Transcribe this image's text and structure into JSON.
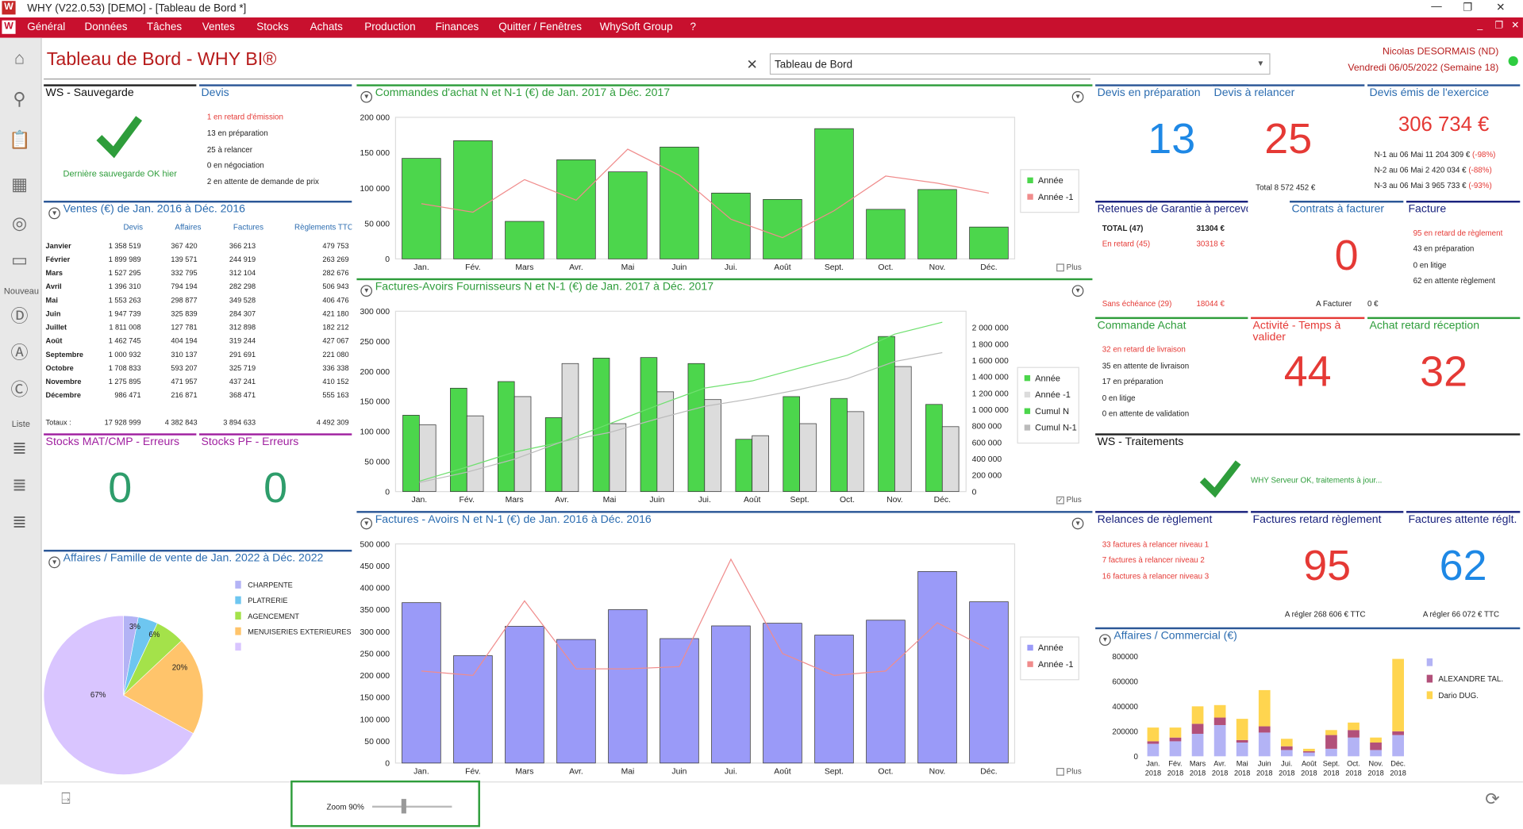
{
  "window": {
    "title": "WHY (V22.0.53)  [DEMO] - [Tableau de Bord *]"
  },
  "menu": [
    "Général",
    "Données",
    "Tâches",
    "Ventes",
    "Stocks",
    "Achats",
    "Production",
    "Finances",
    "Quitter / Fenêtres",
    "WhySoft Group",
    "?"
  ],
  "sidebar": {
    "nouveau": "Nouveau",
    "liste": "Liste"
  },
  "header": {
    "title": "Tableau de Bord - WHY BI®",
    "dashboard_select": "Tableau de Bord",
    "user": "Nicolas DESORMAIS (ND)",
    "date": "Vendredi 06/05/2022 (Semaine 18)"
  },
  "ws_save": {
    "title": "WS - Sauvegarde",
    "status": "Dernière sauvegarde OK hier"
  },
  "devis": {
    "title": "Devis",
    "lines": [
      "1 en retard d'émission",
      "13 en préparation",
      "25 à relancer",
      "0 en négociation",
      "2 en attente de demande de prix"
    ]
  },
  "ventes": {
    "title": "Ventes (€) de Jan. 2016 à Déc. 2016",
    "headers": [
      "Devis",
      "Affaires",
      "Factures",
      "Règlements TTC"
    ],
    "rows": [
      [
        "Janvier",
        "1 358 519",
        "367 420",
        "366 213",
        "479 753"
      ],
      [
        "Février",
        "1 899 989",
        "139 571",
        "244 919",
        "263 269"
      ],
      [
        "Mars",
        "1 527 295",
        "332 795",
        "312 104",
        "282 676"
      ],
      [
        "Avril",
        "1 396 310",
        "794 194",
        "282 298",
        "506 943"
      ],
      [
        "Mai",
        "1 553 263",
        "298 877",
        "349 528",
        "406 476"
      ],
      [
        "Juin",
        "1 947 739",
        "325 839",
        "284 307",
        "421 180"
      ],
      [
        "Juillet",
        "1 811 008",
        "127 781",
        "312 898",
        "182 212"
      ],
      [
        "Août",
        "1 462 745",
        "404 194",
        "319 244",
        "427 067"
      ],
      [
        "Septembre",
        "1 000 932",
        "310 137",
        "291 691",
        "221 080"
      ],
      [
        "Octobre",
        "1 708 833",
        "593 207",
        "325 719",
        "336 338"
      ],
      [
        "Novembre",
        "1 275 895",
        "471 957",
        "437 241",
        "410 152"
      ],
      [
        "Décembre",
        "986 471",
        "216 871",
        "368 471",
        "555 163"
      ]
    ],
    "totals": [
      "Totaux :",
      "17 928 999",
      "4 382 843",
      "3 894 633",
      "4 492 309"
    ]
  },
  "stocks_mat": {
    "title": "Stocks MAT/CMP - Erreurs",
    "value": "0"
  },
  "stocks_pf": {
    "title": "Stocks PF - Erreurs",
    "value": "0"
  },
  "affaires_famille": {
    "title": "Affaires / Famille de vente de Jan. 2022 à Déc. 2022",
    "legend": [
      "CHARPENTE",
      "PLATRERIE",
      "AGENCEMENT",
      "MENUISERIES EXTERIEURES",
      ""
    ],
    "labels": [
      "3%",
      "6%",
      "20%",
      "67%"
    ]
  },
  "commandes": {
    "title": "Commandes d'achat N et N-1 (€) de Jan. 2017 à Déc. 2017",
    "plus": "Plus"
  },
  "factures_fourn": {
    "title": "Factures-Avoirs Fournisseurs N et N-1 (€) de Jan. 2017 à Déc. 2017",
    "plus": "Plus"
  },
  "factures": {
    "title": "Factures - Avoirs N et N-1 (€) de Jan. 2016 à Déc. 2016",
    "plus": "Plus"
  },
  "kpi": {
    "devis_prep": {
      "title": "Devis en préparation",
      "value": "13"
    },
    "devis_relancer": {
      "title": "Devis à relancer",
      "value": "25",
      "sub": "Total 8 572 452 €"
    },
    "devis_emis": {
      "title": "Devis émis de l'exercice",
      "value": "306 734 €",
      "l1a": "N-1 au 06 Mai 11 204 309 € ",
      "l1b": "(-98%)",
      "l2a": "N-2 au 06 Mai 2 420 034 € ",
      "l2b": "(-88%)",
      "l3a": "N-3 au 06 Mai 3 965 733 € ",
      "l3b": "(-93%)"
    },
    "retenues": {
      "title": "Retenues de Garantie à percevoir",
      "total_l": "TOTAL (47)",
      "total_v": "31304 €",
      "retard_l": "En retard (45)",
      "retard_v": "30318 €",
      "sans_l": "Sans échéance (29)",
      "sans_v": "18044 €"
    },
    "contrats": {
      "title": "Contrats à facturer",
      "value": "0",
      "sub_l": "A Facturer",
      "sub_v": "0 €"
    },
    "facture": {
      "title": "Facture",
      "lines": [
        "95 en retard de règlement",
        "43 en préparation",
        "0 en litige",
        "62 en attente règlement"
      ]
    },
    "commande_achat": {
      "title": "Commande Achat",
      "lines": [
        "32 en retard de livraison",
        "35 en attente de livraison",
        "17 en préparation",
        "0 en litige",
        "0 en attente de validation"
      ]
    },
    "activite": {
      "title": "Activité - Temps à valider",
      "value": "44"
    },
    "achat_retard": {
      "title": "Achat retard réception",
      "value": "32"
    },
    "ws_trait": {
      "title": "WS - Traitements",
      "status": "WHY Serveur OK, traitements à jour..."
    },
    "relances": {
      "title": "Relances de règlement",
      "lines": [
        "33 factures à relancer niveau 1",
        "7 factures à relancer niveau 2",
        "16 factures à relancer niveau 3"
      ]
    },
    "fact_retard": {
      "title": "Factures retard règlement",
      "value": "95",
      "sub": "A régler   268 606 € TTC"
    },
    "fact_attente": {
      "title": "Factures attente réglt.",
      "value": "62",
      "sub": "A régler   66 072 € TTC"
    }
  },
  "affaires_commercial": {
    "title": "Affaires / Commercial (€)",
    "legend": [
      "",
      "ALEXANDRE TAL.",
      "Dario DUG."
    ]
  },
  "footer": {
    "zoom": "Zoom 90%"
  },
  "colors": {
    "brand": "#c8102e",
    "green": "#4cd64c",
    "blue_kpi": "#1e88e5",
    "red_kpi": "#e53935",
    "purple": "#9a9af8"
  },
  "chart_data": [
    {
      "type": "bar",
      "id": "commandes",
      "categories": [
        "Jan.",
        "Fév.",
        "Mars",
        "Avr.",
        "Mai",
        "Juin",
        "Jui.",
        "Août",
        "Sept.",
        "Oct.",
        "Nov.",
        "Déc."
      ],
      "series": [
        {
          "name": "Année",
          "kind": "bar",
          "values": [
            142000,
            167000,
            53000,
            140000,
            123000,
            158000,
            93000,
            84000,
            184000,
            70000,
            98000,
            45000
          ]
        },
        {
          "name": "Année -1",
          "kind": "line",
          "values": [
            78000,
            66000,
            112000,
            83000,
            155000,
            118000,
            56000,
            30000,
            68000,
            117000,
            107000,
            93000
          ]
        }
      ],
      "ylim": [
        0,
        200000
      ],
      "yticks": [
        0,
        50000,
        100000,
        150000,
        200000
      ],
      "yticklabels": [
        "0",
        "50 000",
        "100 000",
        "150 000",
        "200 000"
      ]
    },
    {
      "type": "bar",
      "id": "factures_fourn",
      "categories": [
        "Jan.",
        "Fév.",
        "Mars",
        "Avr.",
        "Mai",
        "Juin",
        "Jui.",
        "Août",
        "Sept.",
        "Oct.",
        "Nov.",
        "Déc."
      ],
      "series": [
        {
          "name": "Année",
          "kind": "bar",
          "values": [
            127000,
            172000,
            183000,
            123000,
            222000,
            223000,
            213000,
            87000,
            158000,
            155000,
            258000,
            145000
          ]
        },
        {
          "name": "Année -1",
          "kind": "bar",
          "values": [
            111000,
            126000,
            158000,
            213000,
            113000,
            166000,
            153000,
            93000,
            113000,
            133000,
            208000,
            108000
          ]
        },
        {
          "name": "Cumul N",
          "kind": "line",
          "values": [
            127000,
            299000,
            482000,
            605000,
            827000,
            1050000,
            1263000,
            1350000,
            1508000,
            1663000,
            1921000,
            2066000
          ]
        },
        {
          "name": "Cumul N-1",
          "kind": "line",
          "values": [
            111000,
            237000,
            395000,
            608000,
            721000,
            887000,
            1040000,
            1133000,
            1246000,
            1379000,
            1587000,
            1695000
          ]
        }
      ],
      "ylim": [
        0,
        300000
      ],
      "yticks": [
        0,
        50000,
        100000,
        150000,
        200000,
        250000,
        300000
      ],
      "yticklabels": [
        "0",
        "50 000",
        "100 000",
        "150 000",
        "200 000",
        "250 000",
        "300 000"
      ],
      "y2lim": [
        0,
        2200000
      ],
      "y2ticks": [
        0,
        200000,
        400000,
        600000,
        800000,
        1000000,
        1200000,
        1400000,
        1600000,
        1800000,
        2000000
      ],
      "y2ticklabels": [
        "0",
        "200 000",
        "400 000",
        "600 000",
        "800 000",
        "1 000 000",
        "1 200 000",
        "1 400 000",
        "1 600 000",
        "1 800 000",
        "2 000 000"
      ]
    },
    {
      "type": "bar",
      "id": "factures",
      "categories": [
        "Jan.",
        "Fév.",
        "Mars",
        "Avr.",
        "Mai",
        "Juin",
        "Jui.",
        "Août",
        "Sept.",
        "Oct.",
        "Nov.",
        "Déc."
      ],
      "series": [
        {
          "name": "Année",
          "kind": "bar",
          "values": [
            366000,
            245000,
            312000,
            282000,
            350000,
            284000,
            313000,
            319000,
            292000,
            326000,
            437000,
            368000
          ]
        },
        {
          "name": "Année -1",
          "kind": "line",
          "values": [
            210000,
            200000,
            370000,
            215000,
            215000,
            220000,
            465000,
            250000,
            200000,
            210000,
            320000,
            260000
          ]
        }
      ],
      "ylim": [
        0,
        500000
      ],
      "yticks": [
        0,
        50000,
        100000,
        150000,
        200000,
        250000,
        300000,
        350000,
        400000,
        450000,
        500000
      ],
      "yticklabels": [
        "0",
        "50 000",
        "100 000",
        "150 000",
        "200 000",
        "250 000",
        "300 000",
        "350 000",
        "400 000",
        "450 000",
        "500 000"
      ]
    },
    {
      "type": "pie",
      "id": "affaires_famille",
      "categories": [
        "CHARPENTE",
        "PLATRERIE",
        "AGENCEMENT",
        "MENUISERIES EXTERIEURES",
        ""
      ],
      "values": [
        3,
        4,
        6,
        20,
        67
      ]
    },
    {
      "type": "bar",
      "id": "affaires_commercial",
      "stacked": true,
      "categories": [
        "Jan. 2018",
        "Fév. 2018",
        "Mars 2018",
        "Avr. 2018",
        "Mai 2018",
        "Juin 2018",
        "Jui. 2018",
        "Août 2018",
        "Sept. 2018",
        "Oct. 2018",
        "Nov. 2018",
        "Déc. 2018"
      ],
      "series": [
        {
          "name": "",
          "values": [
            100000,
            120000,
            180000,
            250000,
            110000,
            190000,
            50000,
            30000,
            60000,
            150000,
            50000,
            170000
          ]
        },
        {
          "name": "ALEXANDRE TAL.",
          "values": [
            20000,
            30000,
            80000,
            60000,
            20000,
            50000,
            30000,
            10000,
            110000,
            60000,
            60000,
            30000
          ]
        },
        {
          "name": "Dario DUG.",
          "values": [
            110000,
            80000,
            140000,
            100000,
            170000,
            290000,
            60000,
            20000,
            40000,
            60000,
            40000,
            580000
          ]
        }
      ],
      "ylim": [
        0,
        800000
      ],
      "yticks": [
        0,
        200000,
        400000,
        600000,
        800000
      ],
      "yticklabels": [
        "0",
        "200000",
        "400000",
        "600000",
        "800000"
      ]
    }
  ]
}
